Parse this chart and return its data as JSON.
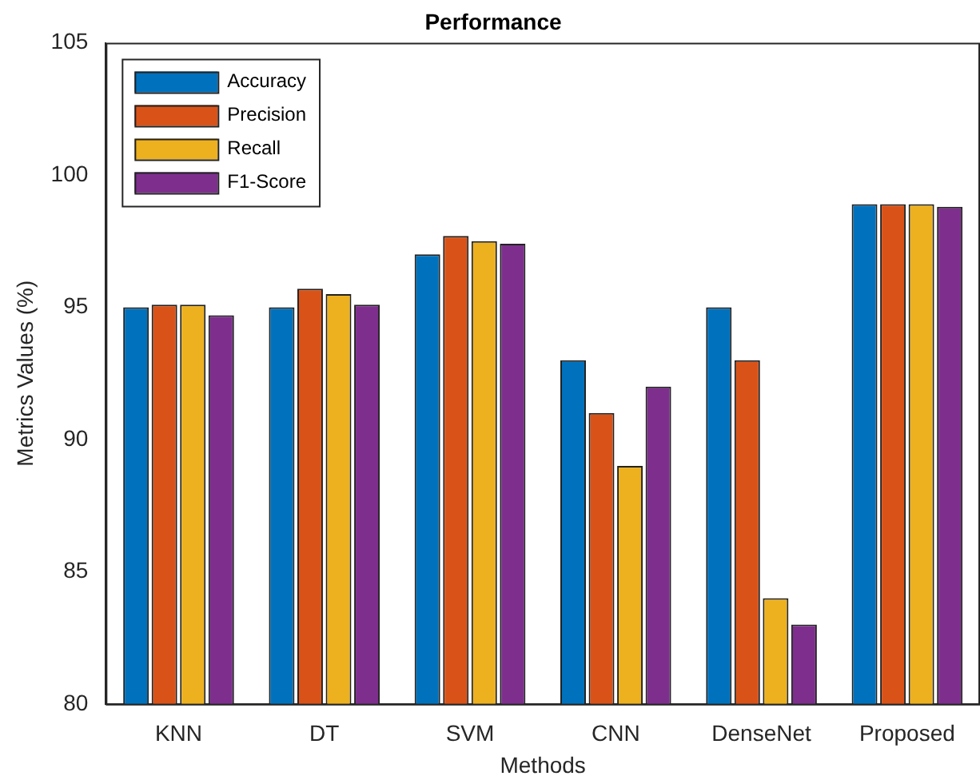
{
  "chart_data": {
    "type": "bar",
    "title": "Performance",
    "xlabel": "Methods",
    "ylabel": "Metrics Values (%)",
    "categories": [
      "KNN",
      "DT",
      "SVM",
      "CNN",
      "DenseNet",
      "Proposed"
    ],
    "series": [
      {
        "name": "Accuracy",
        "color": "#0072bd",
        "values": [
          95,
          95,
          97,
          93,
          95,
          98.9
        ]
      },
      {
        "name": "Precision",
        "color": "#d95319",
        "values": [
          95.1,
          95.7,
          97.7,
          91,
          93,
          98.9
        ]
      },
      {
        "name": "Recall",
        "color": "#edb120",
        "values": [
          95.1,
          95.5,
          97.5,
          89,
          84,
          98.9
        ]
      },
      {
        "name": "F1-Score",
        "color": "#7e2f8e",
        "values": [
          94.7,
          95.1,
          97.4,
          92,
          83,
          98.8
        ]
      }
    ],
    "ylim": [
      80,
      105
    ],
    "yticks": [
      80,
      85,
      90,
      95,
      100,
      105
    ],
    "grid": false,
    "legend": "top left"
  }
}
